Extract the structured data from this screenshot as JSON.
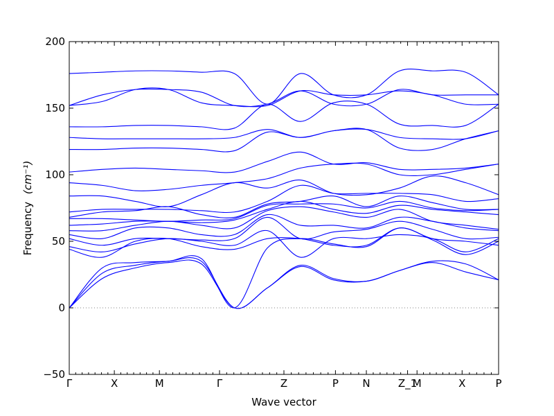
{
  "chart_data": {
    "type": "line",
    "title": "",
    "xlabel": "Wave vector",
    "ylabel": "Frequency",
    "ylabel_unit": "(cm⁻¹)",
    "ylim": [
      -50,
      200
    ],
    "yticks": [
      -50,
      0,
      50,
      100,
      150,
      200
    ],
    "ytick_labels": [
      "−50",
      "0",
      "50",
      "100",
      "150",
      "200"
    ],
    "high_symmetry_points": [
      "Γ",
      "X",
      "M",
      "Γ",
      "Z",
      "P",
      "N",
      "Z_1",
      "M",
      "X",
      "P"
    ],
    "segment_positions": [
      0,
      0.105,
      0.21,
      0.35,
      0.5,
      0.62,
      0.692,
      0.788,
      0.81,
      0.915,
      1.0
    ],
    "zero_line": 0,
    "grid": false,
    "line_color": "#0000ff",
    "zero_line_color": "#808080",
    "series": [
      {
        "values": [
          0,
          22,
          30,
          34,
          33,
          0,
          15,
          32,
          22,
          20,
          28,
          34,
          27,
          21
        ]
      },
      {
        "values": [
          0,
          26,
          32,
          35,
          35,
          0,
          15,
          31,
          21,
          20,
          28,
          35,
          33,
          21
        ]
      },
      {
        "values": [
          0,
          30,
          34,
          35,
          37,
          0,
          45,
          52,
          48,
          46,
          60,
          52,
          50,
          47
        ]
      },
      {
        "values": [
          44,
          38,
          50,
          52,
          46,
          44,
          52,
          52,
          47,
          47,
          60,
          51,
          40,
          50
        ]
      },
      {
        "values": [
          46,
          42,
          48,
          52,
          50,
          47,
          58,
          38,
          52,
          52,
          55,
          52,
          42,
          52
        ]
      },
      {
        "values": [
          52,
          47,
          52,
          52,
          51,
          52,
          68,
          52,
          57,
          59,
          65,
          59,
          52,
          53
        ]
      },
      {
        "values": [
          55,
          52,
          60,
          60,
          55,
          55,
          70,
          62,
          62,
          60,
          68,
          65,
          60,
          58
        ]
      },
      {
        "values": [
          58,
          58,
          62,
          65,
          62,
          60,
          73,
          76,
          72,
          68,
          74,
          65,
          62,
          59
        ]
      },
      {
        "values": [
          62,
          63,
          65,
          65,
          64,
          66,
          74,
          80,
          74,
          71,
          77,
          74,
          72,
          70
        ]
      },
      {
        "values": [
          67,
          67,
          66,
          65,
          66,
          67,
          77,
          78,
          78,
          75,
          80,
          75,
          73,
          74
        ]
      },
      {
        "values": [
          68,
          72,
          73,
          76,
          70,
          68,
          78,
          80,
          84,
          76,
          84,
          79,
          74,
          74
        ]
      },
      {
        "values": [
          72,
          74,
          74,
          74,
          73,
          72,
          80,
          92,
          86,
          86,
          86,
          85,
          80,
          82
        ]
      },
      {
        "values": [
          84,
          84,
          80,
          76,
          85,
          94,
          90,
          96,
          86,
          85,
          90,
          99,
          94,
          85
        ]
      },
      {
        "values": [
          94,
          92,
          88,
          89,
          92,
          94,
          97,
          105,
          108,
          108,
          100,
          100,
          104,
          108
        ]
      },
      {
        "values": [
          102,
          104,
          105,
          104,
          103,
          102,
          110,
          117,
          108,
          109,
          104,
          104,
          105,
          108
        ]
      },
      {
        "values": [
          119,
          119,
          120,
          120,
          119,
          118,
          132,
          128,
          133,
          134,
          120,
          119,
          127,
          133
        ]
      },
      {
        "values": [
          128,
          127,
          127,
          127,
          127,
          128,
          134,
          128,
          133,
          134,
          128,
          127,
          127,
          133
        ]
      },
      {
        "values": [
          136,
          136,
          137,
          137,
          136,
          135,
          153,
          140,
          154,
          153,
          138,
          137,
          137,
          153
        ]
      },
      {
        "values": [
          152,
          155,
          164,
          164,
          154,
          152,
          152,
          163,
          160,
          160,
          163,
          160,
          153,
          153
        ]
      },
      {
        "values": [
          152,
          160,
          164,
          164,
          162,
          152,
          153,
          163,
          153,
          153,
          164,
          160,
          160,
          160
        ]
      },
      {
        "values": [
          176,
          177,
          178,
          178,
          177,
          176,
          153,
          176,
          160,
          160,
          178,
          178,
          177,
          160
        ]
      }
    ]
  }
}
